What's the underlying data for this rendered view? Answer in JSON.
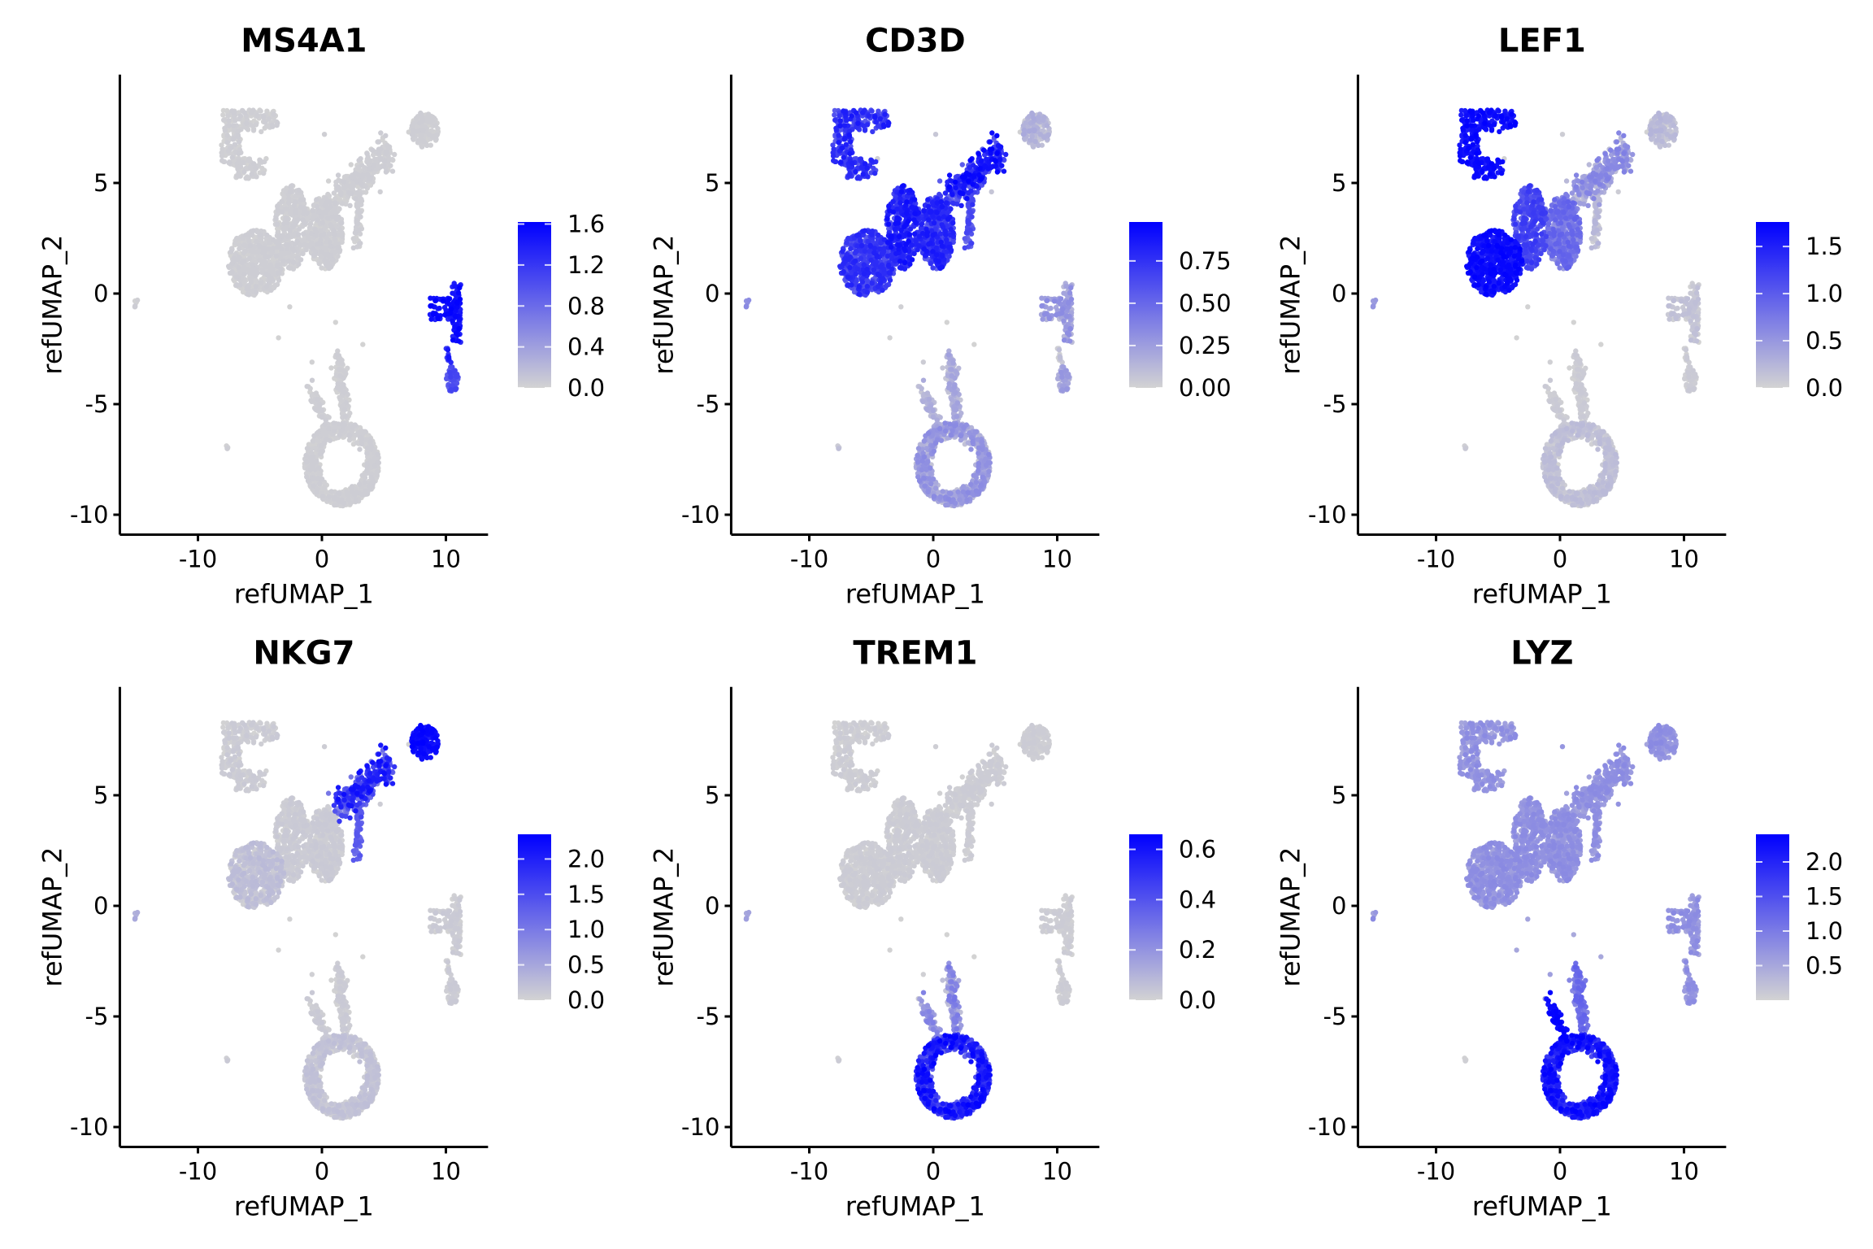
{
  "chart_data": {
    "type": "scatter",
    "subtype": "feature-plot-umap",
    "xlabel": "refUMAP_1",
    "ylabel": "refUMAP_2",
    "xlim": [
      -16.3,
      13.4
    ],
    "ylim": [
      -10.9,
      9.9
    ],
    "x_ticks": [
      -10,
      0,
      10
    ],
    "y_ticks": [
      -10,
      -5,
      0,
      5
    ],
    "grid": false,
    "color_low": "#D3D3D3",
    "color_high": "#0000FF",
    "legend_position": "right",
    "clusters": [
      {
        "name": "cd4-naive-horseshoe",
        "shape": "horseshoe",
        "center": [
          -5.9,
          7.0
        ],
        "n": 260
      },
      {
        "name": "t-main-left",
        "shape": "blob",
        "center": [
          -5.3,
          1.4
        ],
        "radius": [
          2.3,
          1.5
        ],
        "n": 520
      },
      {
        "name": "t-main-mid",
        "shape": "blob",
        "center": [
          -2.4,
          3.0
        ],
        "radius": [
          1.4,
          1.9
        ],
        "n": 360
      },
      {
        "name": "t-main-right",
        "shape": "blob",
        "center": [
          0.3,
          2.8
        ],
        "radius": [
          1.4,
          1.7
        ],
        "n": 420
      },
      {
        "name": "cd8-ridge",
        "shape": "segment",
        "from": [
          1.3,
          4.4
        ],
        "to": [
          5.4,
          6.4
        ],
        "width": 0.75,
        "n": 330
      },
      {
        "name": "cd8-ridge-tail",
        "shape": "segment",
        "from": [
          3.0,
          4.5
        ],
        "to": [
          2.8,
          2.1
        ],
        "width": 0.3,
        "n": 70
      },
      {
        "name": "nk",
        "shape": "blob",
        "center": [
          8.3,
          7.4
        ],
        "radius": [
          1.1,
          0.8
        ],
        "n": 150
      },
      {
        "name": "b-upper",
        "shape": "triangle",
        "center": [
          10.1,
          -0.7
        ],
        "n": 150
      },
      {
        "name": "b-lower",
        "shape": "blob",
        "center": [
          10.5,
          -3.9
        ],
        "radius": [
          0.5,
          0.6
        ],
        "n": 55
      },
      {
        "name": "b-lower-stalk",
        "shape": "segment",
        "from": [
          10.1,
          -2.5
        ],
        "to": [
          10.3,
          -3.3
        ],
        "width": 0.15,
        "n": 10
      },
      {
        "name": "mono-balloon",
        "shape": "blob",
        "center": [
          1.6,
          -7.7
        ],
        "radius": [
          3.0,
          1.9
        ],
        "n": 700
      },
      {
        "name": "mono-stalk",
        "shape": "segment",
        "from": [
          1.3,
          -2.8
        ],
        "to": [
          2.0,
          -5.8
        ],
        "width": 0.4,
        "n": 120
      },
      {
        "name": "mono-left-arm",
        "shape": "segment",
        "from": [
          -0.9,
          -4.3
        ],
        "to": [
          0.4,
          -6.0
        ],
        "width": 0.35,
        "n": 60
      },
      {
        "name": "tiny-left",
        "shape": "blob",
        "center": [
          -15.0,
          -0.4
        ],
        "radius": [
          0.15,
          0.25
        ],
        "n": 6
      },
      {
        "name": "tiny-bottom-left",
        "shape": "blob",
        "center": [
          -7.6,
          -6.9
        ],
        "radius": [
          0.12,
          0.12
        ],
        "n": 5
      },
      {
        "name": "outliers",
        "shape": "points",
        "points": [
          [
            -2.6,
            -0.6
          ],
          [
            1.1,
            -1.3
          ],
          [
            -3.5,
            -2.0
          ],
          [
            3.3,
            -2.3
          ],
          [
            -0.8,
            -3.1
          ],
          [
            -1.2,
            -4.2
          ],
          [
            0.2,
            7.2
          ],
          [
            -4.5,
            6.1
          ],
          [
            4.7,
            4.6
          ],
          [
            7.0,
            7.3
          ]
        ]
      }
    ],
    "series": [
      {
        "name": "MS4A1",
        "legend_title": "",
        "color_range": [
          0.0,
          1.62
        ],
        "legend_ticks": [
          0.0,
          0.4,
          0.8,
          1.2,
          1.6
        ],
        "legend_tick_labels": [
          "0.0",
          "0.4",
          "0.8",
          "1.2",
          "1.6"
        ],
        "expression_by_cluster": {
          "b-upper": [
            0.8,
            1.0
          ],
          "b-lower": [
            0.5,
            0.7
          ],
          "b-lower-stalk": [
            0.7,
            0.9
          ]
        },
        "background": [
          0.0,
          0.03
        ]
      },
      {
        "name": "CD3D",
        "color_range": [
          0.0,
          0.98
        ],
        "legend_ticks": [
          0.0,
          0.25,
          0.5,
          0.75
        ],
        "legend_tick_labels": [
          "0.00",
          "0.25",
          "0.50",
          "0.75"
        ],
        "expression_by_cluster": {
          "cd4-naive-horseshoe": [
            0.55,
            0.9
          ],
          "t-main-left": [
            0.5,
            0.85
          ],
          "t-main-mid": [
            0.55,
            0.95
          ],
          "t-main-right": [
            0.5,
            0.9
          ],
          "cd8-ridge": [
            0.45,
            1.0
          ],
          "cd8-ridge-tail": [
            0.45,
            0.7
          ],
          "nk": [
            0.0,
            0.2
          ],
          "b-upper": [
            0.1,
            0.35
          ],
          "b-lower": [
            0.1,
            0.3
          ],
          "mono-balloon": [
            0.05,
            0.35
          ],
          "mono-stalk": [
            0.05,
            0.25
          ],
          "mono-left-arm": [
            0.05,
            0.2
          ],
          "tiny-left": [
            0.3,
            0.35
          ]
        },
        "background": [
          0.0,
          0.1
        ]
      },
      {
        "name": "LEF1",
        "color_range": [
          0.0,
          1.76
        ],
        "legend_ticks": [
          0.0,
          0.5,
          1.0,
          1.5
        ],
        "legend_tick_labels": [
          "0.0",
          "0.5",
          "1.0",
          "1.5"
        ],
        "expression_by_cluster": {
          "cd4-naive-horseshoe": [
            0.85,
            1.0
          ],
          "t-main-left": [
            0.8,
            1.0
          ],
          "t-main-mid": [
            0.45,
            0.75
          ],
          "t-main-right": [
            0.25,
            0.55
          ],
          "cd8-ridge": [
            0.05,
            0.4
          ],
          "cd8-ridge-tail": [
            0.0,
            0.15
          ],
          "nk": [
            0.0,
            0.15
          ],
          "b-upper": [
            0.0,
            0.1
          ],
          "mono-balloon": [
            0.0,
            0.12
          ],
          "tiny-left": [
            0.25,
            0.3
          ]
        },
        "background": [
          0.0,
          0.05
        ]
      },
      {
        "name": "NKG7",
        "color_range": [
          0.0,
          2.35
        ],
        "legend_ticks": [
          0.0,
          0.5,
          1.0,
          1.5,
          2.0
        ],
        "legend_tick_labels": [
          "0.0",
          "0.5",
          "1.0",
          "1.5",
          "2.0"
        ],
        "expression_by_cluster": {
          "nk": [
            0.85,
            1.0
          ],
          "cd8-ridge": [
            0.3,
            0.95
          ],
          "cd8-ridge-tail": [
            0.45,
            0.6
          ],
          "t-main-left": [
            0.0,
            0.12
          ],
          "mono-balloon": [
            0.0,
            0.1
          ],
          "tiny-left": [
            0.15,
            0.2
          ]
        },
        "background": [
          0.0,
          0.05
        ]
      },
      {
        "name": "TREM1",
        "color_range": [
          0.0,
          0.66
        ],
        "legend_ticks": [
          0.0,
          0.2,
          0.4,
          0.6
        ],
        "legend_tick_labels": [
          "0.0",
          "0.2",
          "0.4",
          "0.6"
        ],
        "expression_by_cluster": {
          "mono-balloon": [
            0.45,
            1.0
          ],
          "mono-stalk": [
            0.05,
            0.45
          ],
          "mono-left-arm": [
            0.15,
            0.4
          ],
          "tiny-left": [
            0.2,
            0.25
          ]
        },
        "background": [
          0.0,
          0.04
        ]
      },
      {
        "name": "LYZ",
        "color_range": [
          0.0,
          2.4
        ],
        "legend_ticks": [
          0.5,
          1.0,
          1.5,
          2.0
        ],
        "legend_tick_labels": [
          "0.5",
          "1.0",
          "1.5",
          "2.0"
        ],
        "expression_by_cluster": {
          "mono-balloon": [
            0.6,
            1.0
          ],
          "mono-stalk": [
            0.35,
            0.55
          ],
          "mono-left-arm": [
            0.9,
            1.0
          ],
          "tiny-bottom-left": [
            0.0,
            0.02
          ]
        },
        "background": [
          0.2,
          0.35
        ]
      }
    ]
  }
}
